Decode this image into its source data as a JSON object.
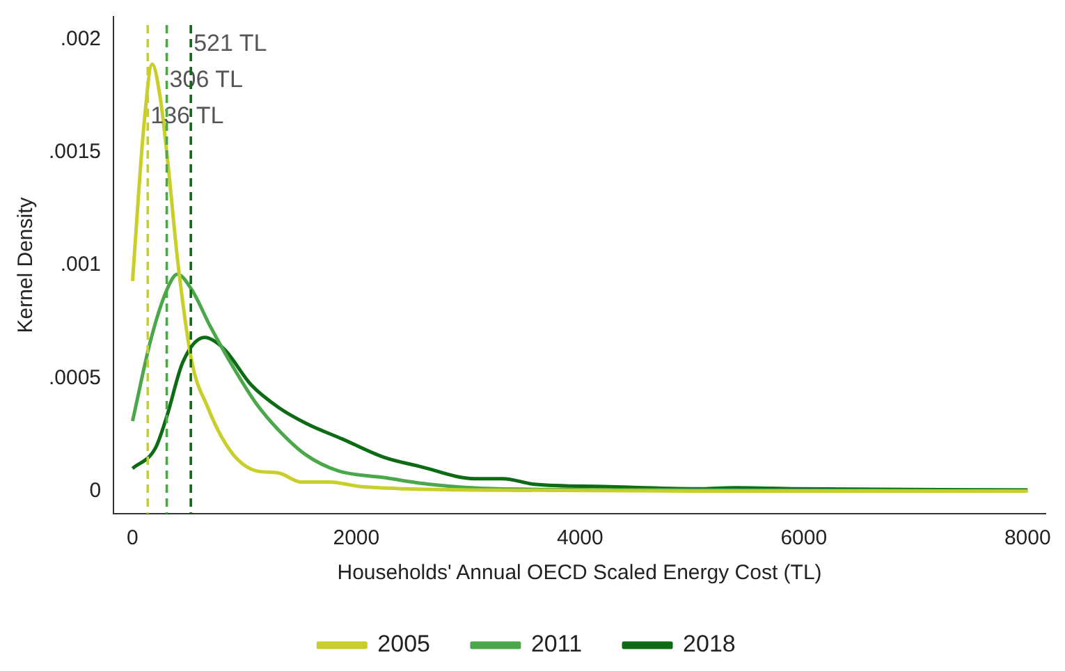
{
  "chart_data": {
    "type": "line",
    "xlabel": "Households' Annual OECD Scaled Energy Cost (TL)",
    "ylabel": "Kernel Density",
    "xlim": [
      -170,
      8160
    ],
    "xticks": [
      0,
      2000,
      4000,
      6000,
      8000
    ],
    "ylim": [
      -0.0001,
      0.0021
    ],
    "yticks": [
      {
        "value": 0,
        "label": "0"
      },
      {
        "value": 0.0005,
        "label": ".0005"
      },
      {
        "value": 0.001,
        "label": ".001"
      },
      {
        "value": 0.0015,
        "label": ".0015"
      },
      {
        "value": 0.002,
        "label": ".002"
      }
    ],
    "grid": false,
    "legend": "bottom",
    "marker": "none",
    "line_style": "solid",
    "series": [
      {
        "name": "2005",
        "color": "#c8cf2a",
        "x": [
          0,
          102,
          176,
          245,
          306,
          408,
          531,
          673,
          796,
          939,
          1102,
          1306,
          1510,
          1755,
          2041,
          2449,
          3000,
          5000,
          8000
        ],
        "values": [
          0.00093,
          0.00162,
          0.00189,
          0.00175,
          0.0015,
          0.001,
          0.00057,
          0.00037,
          0.00024,
          0.00014,
          9e-05,
          8e-05,
          4e-05,
          4e-05,
          2e-05,
          1e-05,
          5e-06,
          0,
          0
        ]
      },
      {
        "name": "2011",
        "color": "#4aa84a",
        "x": [
          0,
          163,
          306,
          400,
          531,
          694,
          898,
          1102,
          1306,
          1551,
          1837,
          2245,
          2653,
          3265,
          5000,
          8000
        ],
        "values": [
          0.00031,
          0.00067,
          0.00089,
          0.00096,
          0.00089,
          0.00073,
          0.00055,
          0.00039,
          0.00027,
          0.00016,
          9e-05,
          6e-05,
          3e-05,
          1e-05,
          5e-06,
          0
        ]
      },
      {
        "name": "2018",
        "color": "#0d6b14",
        "x": [
          0,
          204,
          306,
          449,
          645,
          816,
          1061,
          1306,
          1551,
          1878,
          2245,
          2562,
          3060,
          3308,
          3595,
          4216,
          5050,
          5385,
          5945,
          8000
        ],
        "values": [
          0.0001,
          0.00019,
          0.00033,
          0.00057,
          0.00068,
          0.00063,
          0.00047,
          0.00037,
          0.0003,
          0.00023,
          0.00015,
          0.00011,
          5.5e-05,
          5.5e-05,
          3e-05,
          2e-05,
          1e-05,
          1.5e-05,
          1e-05,
          5e-06
        ]
      }
    ],
    "ref_lines": [
      {
        "axis": "x",
        "value": 136,
        "label": "136 TL",
        "color": "#c8cf2a",
        "line_style": "dashed"
      },
      {
        "axis": "x",
        "value": 306,
        "label": "306 TL",
        "color": "#4aa84a",
        "line_style": "dashed"
      },
      {
        "axis": "x",
        "value": 521,
        "label": "521 TL",
        "color": "#0d6b14",
        "line_style": "dashed"
      }
    ]
  }
}
